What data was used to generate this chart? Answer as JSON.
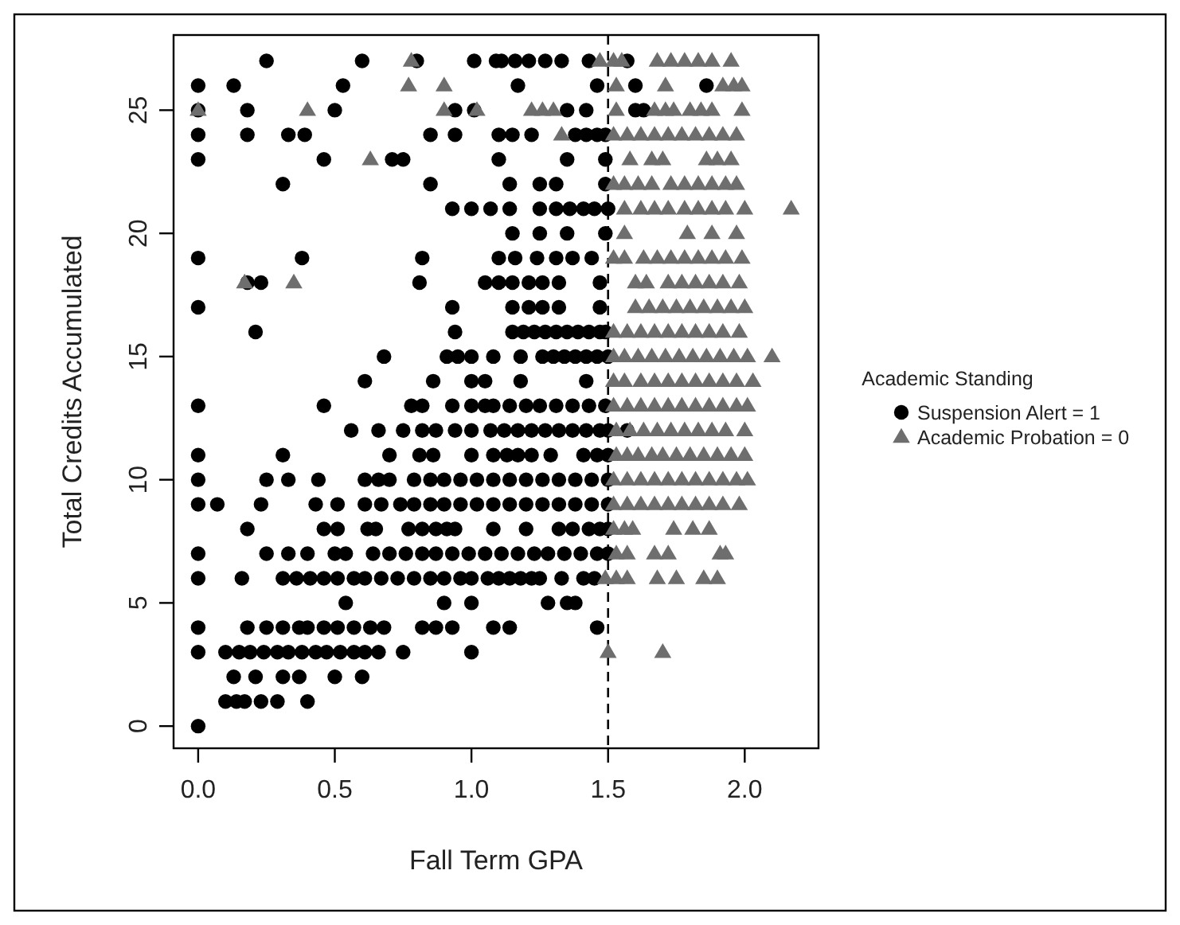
{
  "chart_data": {
    "type": "scatter",
    "xlabel": "Fall Term GPA",
    "ylabel": "Total Credits Accumulated",
    "legend_title": "Academic Standing",
    "legend": "right",
    "grid": false,
    "xlim": [
      -0.09,
      2.27
    ],
    "ylim": [
      -0.9,
      28.05
    ],
    "xticks": [
      {
        "value": 0,
        "label": "0.0"
      },
      {
        "value": 0.5,
        "label": "0.5"
      },
      {
        "value": 1,
        "label": "1.0"
      },
      {
        "value": 1.5,
        "label": "1.5"
      },
      {
        "value": 2,
        "label": "2.0"
      }
    ],
    "yticks": [
      0,
      5,
      10,
      15,
      20,
      25
    ],
    "ref_lines": [
      {
        "axis": "x",
        "value": 1.5,
        "line_style": "dashed",
        "color": "#000000"
      }
    ],
    "series": [
      {
        "name": "Suspension Alert = 1",
        "color": "#000000",
        "marker": "circle",
        "x": [
          0.25,
          0.6,
          0.8,
          1.01,
          1.09,
          1.11,
          1.16,
          1.21,
          1.27,
          1.33,
          1.43,
          1.57,
          0.0,
          0.13,
          0.53,
          1.17,
          1.46,
          1.6,
          1.86,
          0.0,
          0.18,
          0.5,
          0.94,
          1.01,
          1.35,
          1.42,
          1.6,
          1.63,
          0.0,
          0.18,
          0.33,
          0.39,
          0.85,
          0.94,
          1.1,
          1.15,
          1.22,
          1.38,
          1.42,
          1.46,
          1.49,
          0.0,
          0.46,
          0.71,
          0.75,
          1.1,
          1.35,
          1.49,
          0.31,
          0.85,
          1.14,
          1.25,
          1.31,
          1.49,
          0.93,
          1.0,
          1.07,
          1.14,
          1.25,
          1.31,
          1.36,
          1.41,
          1.45,
          1.5,
          1.15,
          1.25,
          1.35,
          1.49,
          0.0,
          0.38,
          0.82,
          1.1,
          1.16,
          1.24,
          1.31,
          1.37,
          1.44,
          0.18,
          0.23,
          0.81,
          1.05,
          1.1,
          1.15,
          1.21,
          1.26,
          1.32,
          1.47,
          0.0,
          0.93,
          1.15,
          1.21,
          1.26,
          1.32,
          1.47,
          0.21,
          0.94,
          1.15,
          1.19,
          1.23,
          1.27,
          1.31,
          1.35,
          1.39,
          1.43,
          1.47,
          1.49,
          0.68,
          0.91,
          0.95,
          1.0,
          1.08,
          1.18,
          1.26,
          1.3,
          1.34,
          1.38,
          1.42,
          1.46,
          1.5,
          0.61,
          0.86,
          1.0,
          1.05,
          1.18,
          1.42,
          0.0,
          0.46,
          0.78,
          0.82,
          0.93,
          1.0,
          1.05,
          1.08,
          1.14,
          1.2,
          1.25,
          1.31,
          1.37,
          1.43,
          1.49,
          0.56,
          0.66,
          0.75,
          0.82,
          0.87,
          0.94,
          1.0,
          1.07,
          1.12,
          1.17,
          1.22,
          1.27,
          1.32,
          1.37,
          1.42,
          1.47,
          1.5,
          1.57,
          0.0,
          0.31,
          0.7,
          0.81,
          0.86,
          1.0,
          1.08,
          1.13,
          1.17,
          1.22,
          1.29,
          1.41,
          1.46,
          1.5,
          0.0,
          0.25,
          0.33,
          0.44,
          0.61,
          0.66,
          0.7,
          0.79,
          0.85,
          0.9,
          0.96,
          1.02,
          1.08,
          1.14,
          1.2,
          1.26,
          1.32,
          1.38,
          1.44,
          1.5,
          0.0,
          0.07,
          0.23,
          0.43,
          0.51,
          0.61,
          0.67,
          0.74,
          0.79,
          0.85,
          0.9,
          0.96,
          1.02,
          1.08,
          1.14,
          1.2,
          1.26,
          1.32,
          1.38,
          1.44,
          1.5,
          0.18,
          0.46,
          0.51,
          0.62,
          0.65,
          0.77,
          0.82,
          0.87,
          0.91,
          0.94,
          1.08,
          1.2,
          1.32,
          1.37,
          1.43,
          1.47,
          1.5,
          0.0,
          0.25,
          0.33,
          0.4,
          0.5,
          0.54,
          0.64,
          0.7,
          0.76,
          0.82,
          0.87,
          0.93,
          0.99,
          1.05,
          1.11,
          1.17,
          1.23,
          1.28,
          1.34,
          1.4,
          1.46,
          1.5,
          0.0,
          0.16,
          0.31,
          0.36,
          0.41,
          0.46,
          0.51,
          0.57,
          0.61,
          0.67,
          0.73,
          0.79,
          0.85,
          0.9,
          0.96,
          1.0,
          1.06,
          1.1,
          1.14,
          1.18,
          1.22,
          1.25,
          1.33,
          1.41,
          1.45,
          0.54,
          0.9,
          1.0,
          1.28,
          1.35,
          1.38,
          0.0,
          0.18,
          0.25,
          0.31,
          0.37,
          0.4,
          0.46,
          0.51,
          0.57,
          0.63,
          0.68,
          0.82,
          0.87,
          0.93,
          1.08,
          1.14,
          1.46,
          0.0,
          0.1,
          0.15,
          0.19,
          0.24,
          0.29,
          0.33,
          0.38,
          0.43,
          0.47,
          0.52,
          0.57,
          0.61,
          0.66,
          0.75,
          1.0,
          0.13,
          0.21,
          0.31,
          0.37,
          0.5,
          0.6,
          0.1,
          0.14,
          0.17,
          0.23,
          0.29,
          0.4,
          0.0
        ],
        "values": [
          27,
          27,
          27,
          27,
          27,
          27,
          27,
          27,
          27,
          27,
          27,
          27,
          26,
          26,
          26,
          26,
          26,
          26,
          26,
          25,
          25,
          25,
          25,
          25,
          25,
          25,
          25,
          25,
          24,
          24,
          24,
          24,
          24,
          24,
          24,
          24,
          24,
          24,
          24,
          24,
          24,
          23,
          23,
          23,
          23,
          23,
          23,
          23,
          22,
          22,
          22,
          22,
          22,
          22,
          21,
          21,
          21,
          21,
          21,
          21,
          21,
          21,
          21,
          21,
          20,
          20,
          20,
          20,
          19,
          19,
          19,
          19,
          19,
          19,
          19,
          19,
          19,
          18,
          18,
          18,
          18,
          18,
          18,
          18,
          18,
          18,
          18,
          17,
          17,
          17,
          17,
          17,
          17,
          17,
          16,
          16,
          16,
          16,
          16,
          16,
          16,
          16,
          16,
          16,
          16,
          16,
          15,
          15,
          15,
          15,
          15,
          15,
          15,
          15,
          15,
          15,
          15,
          15,
          15,
          14,
          14,
          14,
          14,
          14,
          14,
          13,
          13,
          13,
          13,
          13,
          13,
          13,
          13,
          13,
          13,
          13,
          13,
          13,
          13,
          13,
          12,
          12,
          12,
          12,
          12,
          12,
          12,
          12,
          12,
          12,
          12,
          12,
          12,
          12,
          12,
          12,
          12,
          12,
          11,
          11,
          11,
          11,
          11,
          11,
          11,
          11,
          11,
          11,
          11,
          11,
          11,
          11,
          10,
          10,
          10,
          10,
          10,
          10,
          10,
          10,
          10,
          10,
          10,
          10,
          10,
          10,
          10,
          10,
          10,
          10,
          10,
          10,
          9,
          9,
          9,
          9,
          9,
          9,
          9,
          9,
          9,
          9,
          9,
          9,
          9,
          9,
          9,
          9,
          9,
          9,
          9,
          9,
          9,
          8,
          8,
          8,
          8,
          8,
          8,
          8,
          8,
          8,
          8,
          8,
          8,
          8,
          8,
          8,
          8,
          8,
          7,
          7,
          7,
          7,
          7,
          7,
          7,
          7,
          7,
          7,
          7,
          7,
          7,
          7,
          7,
          7,
          7,
          7,
          7,
          7,
          7,
          7,
          6,
          6,
          6,
          6,
          6,
          6,
          6,
          6,
          6,
          6,
          6,
          6,
          6,
          6,
          6,
          6,
          6,
          6,
          6,
          6,
          6,
          6,
          6,
          6,
          6,
          5,
          5,
          5,
          5,
          5,
          5,
          4,
          4,
          4,
          4,
          4,
          4,
          4,
          4,
          4,
          4,
          4,
          4,
          4,
          4,
          4,
          4,
          4,
          3,
          3,
          3,
          3,
          3,
          3,
          3,
          3,
          3,
          3,
          3,
          3,
          3,
          3,
          3,
          3,
          2,
          2,
          2,
          2,
          2,
          2,
          1,
          1,
          1,
          1,
          1,
          1,
          0
        ]
      },
      {
        "name": "Academic Probation = 0",
        "color": "#6e6e6e",
        "marker": "triangle",
        "x": [
          0.78,
          1.47,
          1.52,
          1.55,
          1.68,
          1.73,
          1.78,
          1.83,
          1.88,
          1.95,
          0.77,
          0.9,
          1.53,
          1.71,
          1.92,
          1.96,
          1.99,
          0.0,
          0.4,
          0.9,
          1.02,
          1.22,
          1.26,
          1.3,
          1.53,
          1.67,
          1.71,
          1.74,
          1.8,
          1.84,
          1.88,
          1.99,
          1.33,
          1.52,
          1.57,
          1.62,
          1.67,
          1.72,
          1.77,
          1.82,
          1.87,
          1.92,
          1.97,
          0.63,
          1.58,
          1.66,
          1.7,
          1.86,
          1.9,
          1.95,
          1.52,
          1.56,
          1.61,
          1.66,
          1.73,
          1.78,
          1.83,
          1.88,
          1.93,
          1.97,
          1.56,
          1.62,
          1.67,
          1.72,
          1.78,
          1.83,
          1.88,
          1.93,
          2.0,
          2.17,
          1.56,
          1.79,
          1.88,
          1.97,
          1.52,
          1.56,
          1.63,
          1.68,
          1.73,
          1.78,
          1.83,
          1.88,
          1.93,
          1.99,
          0.17,
          0.35,
          1.6,
          1.64,
          1.72,
          1.77,
          1.82,
          1.87,
          1.92,
          1.98,
          1.6,
          1.65,
          1.7,
          1.75,
          1.8,
          1.85,
          1.9,
          1.95,
          2.0,
          1.52,
          1.57,
          1.62,
          1.67,
          1.72,
          1.77,
          1.82,
          1.87,
          1.92,
          1.98,
          1.52,
          1.56,
          1.61,
          1.66,
          1.71,
          1.76,
          1.81,
          1.86,
          1.91,
          1.96,
          2.01,
          2.1,
          1.52,
          1.56,
          1.62,
          1.67,
          1.72,
          1.77,
          1.82,
          1.87,
          1.92,
          1.97,
          2.03,
          1.52,
          1.57,
          1.62,
          1.67,
          1.72,
          1.77,
          1.82,
          1.87,
          1.92,
          1.97,
          2.01,
          1.53,
          1.58,
          1.63,
          1.68,
          1.73,
          1.78,
          1.83,
          1.88,
          1.93,
          2.0,
          1.53,
          1.57,
          1.61,
          1.66,
          1.7,
          1.75,
          1.8,
          1.85,
          1.9,
          1.95,
          2.0,
          1.52,
          1.57,
          1.62,
          1.67,
          1.72,
          1.77,
          1.82,
          1.87,
          1.92,
          1.97,
          2.01,
          1.52,
          1.57,
          1.62,
          1.67,
          1.72,
          1.77,
          1.82,
          1.87,
          1.92,
          1.98,
          1.52,
          1.56,
          1.59,
          1.74,
          1.81,
          1.87,
          1.53,
          1.57,
          1.67,
          1.72,
          1.91,
          1.93,
          1.49,
          1.53,
          1.57,
          1.68,
          1.75,
          1.85,
          1.9,
          1.5,
          1.7
        ],
        "values": [
          27,
          27,
          27,
          27,
          27,
          27,
          27,
          27,
          27,
          27,
          26,
          26,
          26,
          26,
          26,
          26,
          26,
          25,
          25,
          25,
          25,
          25,
          25,
          25,
          25,
          25,
          25,
          25,
          25,
          25,
          25,
          25,
          24,
          24,
          24,
          24,
          24,
          24,
          24,
          24,
          24,
          24,
          24,
          23,
          23,
          23,
          23,
          23,
          23,
          23,
          22,
          22,
          22,
          22,
          22,
          22,
          22,
          22,
          22,
          22,
          21,
          21,
          21,
          21,
          21,
          21,
          21,
          21,
          21,
          21,
          20,
          20,
          20,
          20,
          19,
          19,
          19,
          19,
          19,
          19,
          19,
          19,
          19,
          19,
          18,
          18,
          18,
          18,
          18,
          18,
          18,
          18,
          18,
          18,
          17,
          17,
          17,
          17,
          17,
          17,
          17,
          17,
          17,
          16,
          16,
          16,
          16,
          16,
          16,
          16,
          16,
          16,
          16,
          15,
          15,
          15,
          15,
          15,
          15,
          15,
          15,
          15,
          15,
          15,
          15,
          14,
          14,
          14,
          14,
          14,
          14,
          14,
          14,
          14,
          14,
          14,
          13,
          13,
          13,
          13,
          13,
          13,
          13,
          13,
          13,
          13,
          13,
          12,
          12,
          12,
          12,
          12,
          12,
          12,
          12,
          12,
          12,
          11,
          11,
          11,
          11,
          11,
          11,
          11,
          11,
          11,
          11,
          11,
          10,
          10,
          10,
          10,
          10,
          10,
          10,
          10,
          10,
          10,
          10,
          9,
          9,
          9,
          9,
          9,
          9,
          9,
          9,
          9,
          9,
          8,
          8,
          8,
          8,
          8,
          8,
          7,
          7,
          7,
          7,
          7,
          7,
          6,
          6,
          6,
          6,
          6,
          6,
          6,
          3,
          3
        ]
      }
    ]
  }
}
